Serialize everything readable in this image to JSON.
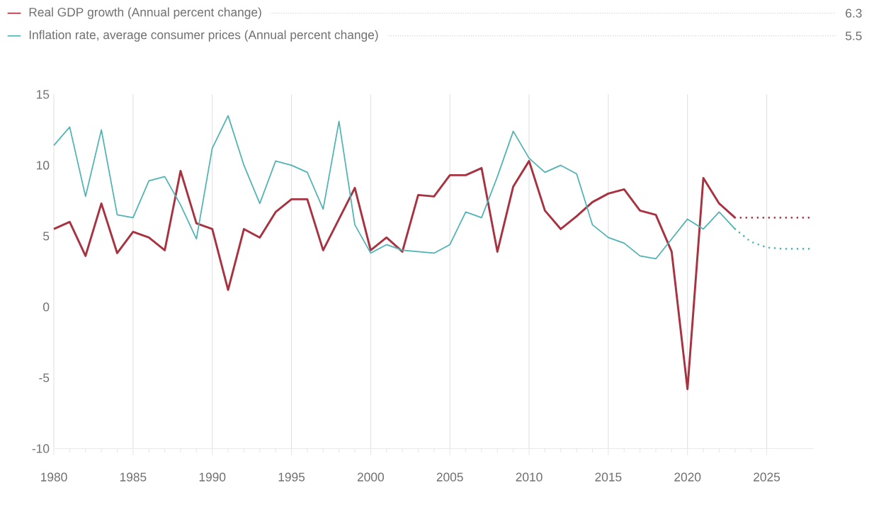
{
  "chart_data": {
    "type": "line",
    "x": [
      1980,
      1981,
      1982,
      1983,
      1984,
      1985,
      1986,
      1987,
      1988,
      1989,
      1990,
      1991,
      1992,
      1993,
      1994,
      1995,
      1996,
      1997,
      1998,
      1999,
      2000,
      2001,
      2002,
      2003,
      2004,
      2005,
      2006,
      2007,
      2008,
      2009,
      2010,
      2011,
      2012,
      2013,
      2014,
      2015,
      2016,
      2017,
      2018,
      2019,
      2020,
      2021,
      2022,
      2023
    ],
    "series": [
      {
        "name": "Real GDP growth (Annual percent change)",
        "color": "#a83240",
        "values": [
          5.5,
          6.0,
          3.6,
          7.3,
          3.8,
          5.3,
          4.9,
          4.0,
          9.6,
          5.9,
          5.5,
          1.2,
          5.5,
          4.9,
          6.7,
          7.6,
          7.6,
          4.0,
          6.2,
          8.4,
          4.0,
          4.9,
          3.9,
          7.9,
          7.8,
          9.3,
          9.3,
          9.8,
          3.9,
          8.5,
          10.3,
          6.8,
          5.5,
          6.4,
          7.4,
          8.0,
          8.3,
          6.8,
          6.5,
          3.9,
          -5.8,
          9.1,
          7.3,
          6.3
        ]
      },
      {
        "name": "Inflation rate, average consumer prices (Annual percent change)",
        "color": "#4fb3b3",
        "values": [
          11.4,
          12.7,
          7.8,
          12.5,
          6.5,
          6.3,
          8.9,
          9.2,
          7.2,
          4.8,
          11.2,
          13.5,
          10.0,
          7.3,
          10.3,
          10.0,
          9.5,
          6.9,
          13.1,
          5.8,
          3.8,
          4.4,
          4.0,
          3.9,
          3.8,
          4.4,
          6.7,
          6.3,
          9.2,
          12.4,
          10.5,
          9.5,
          10.0,
          9.4,
          5.8,
          4.9,
          4.5,
          3.6,
          3.4,
          4.8,
          6.2,
          5.5,
          6.7,
          5.5
        ]
      },
      {
        "color": "#a83240",
        "line_style": "dotted",
        "x": [
          2023,
          2024,
          2025,
          2026,
          2027,
          2028
        ],
        "values": [
          6.3,
          6.3,
          6.3,
          6.3,
          6.3,
          6.3
        ]
      },
      {
        "color": "#4fb3b3",
        "line_style": "dotted",
        "x": [
          2023,
          2024,
          2025,
          2026,
          2027,
          2028
        ],
        "values": [
          5.5,
          4.6,
          4.2,
          4.1,
          4.1,
          4.1
        ]
      }
    ],
    "annotations": [
      "6.3",
      "5.5"
    ],
    "xlim": [
      1980,
      2028
    ],
    "ylim": [
      -10,
      15
    ],
    "xticks": [
      1980,
      1985,
      1990,
      1995,
      2000,
      2005,
      2010,
      2015,
      2020,
      2025
    ],
    "yticks": [
      -10,
      -5,
      0,
      5,
      10,
      15
    ],
    "grid": "x",
    "legend": "top left"
  }
}
